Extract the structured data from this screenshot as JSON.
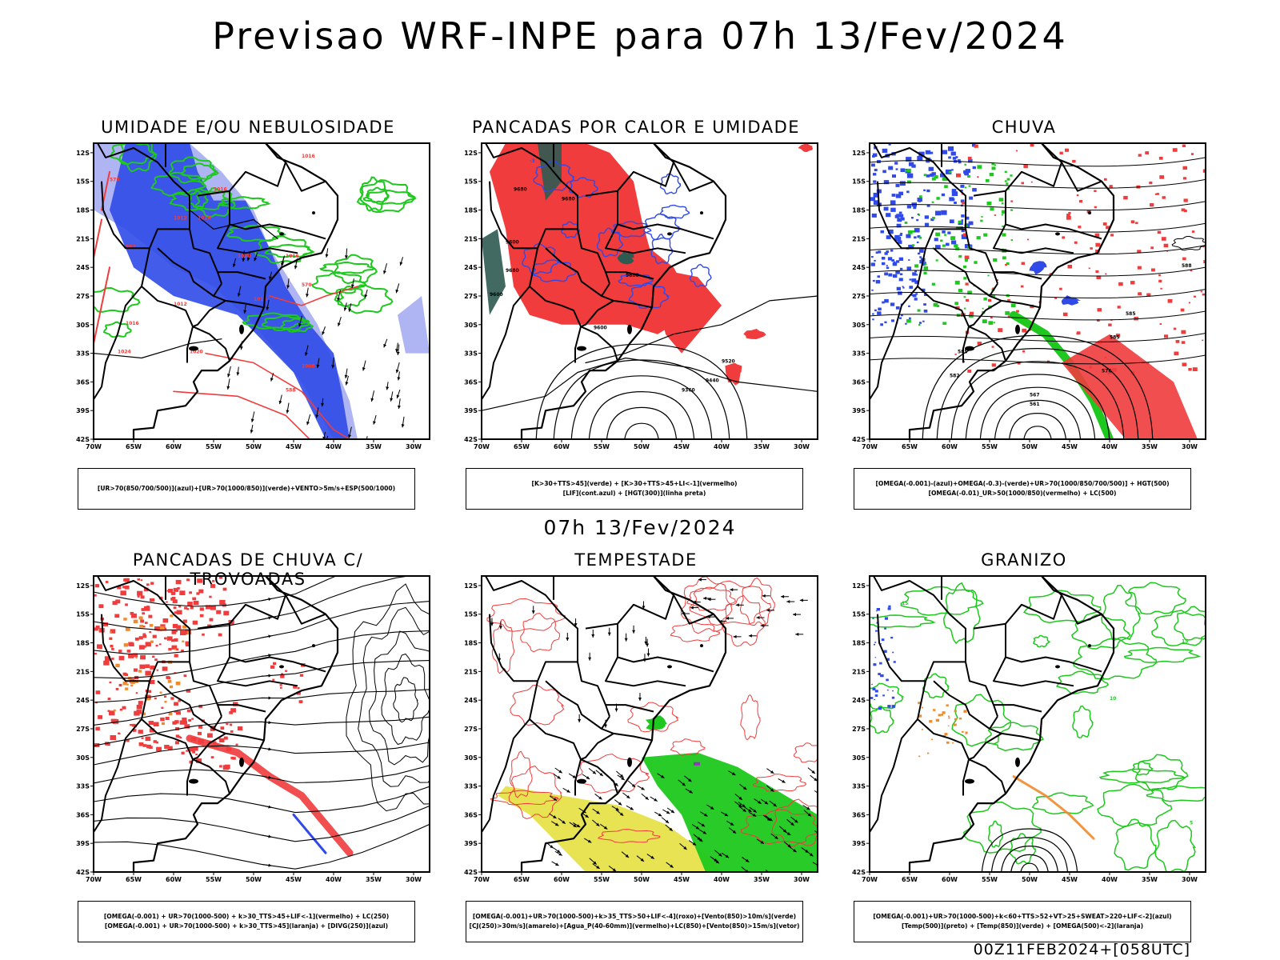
{
  "title": "Previsao WRF-INPE  para 07h 13/Fev/2024",
  "subtitle": "07h 13/Fev/2024",
  "footer": "00Z11FEB2024+[058UTC]",
  "axes": {
    "lat_labels": [
      "12S",
      "15S",
      "18S",
      "21S",
      "24S",
      "27S",
      "30S",
      "33S",
      "36S",
      "39S",
      "42S"
    ],
    "lon_labels": [
      "70W",
      "65W",
      "60W",
      "55W",
      "50W",
      "45W",
      "40W",
      "35W",
      "30W"
    ]
  },
  "colors": {
    "blue": "#2f4ae8",
    "lightblue": "#9aa3ef",
    "green": "#1ec81e",
    "red": "#f03c3c",
    "darkteal": "#2e5a52",
    "yellow": "#e4e040",
    "orange": "#f08a2a",
    "black": "#000000"
  },
  "panels": [
    {
      "title": "UMIDADE E/OU NEBULOSIDADE",
      "legend": [
        "[UR>70(850/700/500)](azul)+[UR>70(1000/850)](verde)+VENTO>5m/s+ESP(500/1000)"
      ],
      "contour_labels": [
        "1016",
        "1016",
        "1012",
        "1016",
        "1020",
        "1016",
        "1016",
        "1012",
        "1016",
        "1020",
        "1024",
        "1008",
        "570",
        "576",
        "582",
        "588"
      ]
    },
    {
      "title": "PANCADAS POR CALOR E UMIDADE",
      "legend": [
        "[K>30+TTS>45](verde) + [K>30+TTS>45+LI<-1](vermelho)",
        "[LIF](cont.azul) + [HGT(300)](linha preta)"
      ],
      "contour_labels": [
        "9680",
        "9680",
        "9600",
        "9680",
        "9680",
        "9600",
        "9600",
        "9520",
        "9440",
        "9360",
        "-3"
      ]
    },
    {
      "title": "CHUVA",
      "legend": [
        "[OMEGA(-0.001)-(azul)+OMEGA(-0.3)-(verde)+UR>70(1000/850/700/500)] + HGT(500)",
        "[OMEGA(-0.01)_UR>50(1000/850)(vermelho) + LC(500)"
      ],
      "contour_labels": [
        "585",
        "585",
        "585",
        "582",
        "576",
        "567",
        "561",
        "588"
      ]
    },
    {
      "title": "PANCADAS DE CHUVA C/ TROVOADAS",
      "legend": [
        "[OMEGA(-0.001) + UR>70(1000-500) + k>30_TTS>45+LIF<-1](vermelho) + LC(250)",
        "[OMEGA(-0.001) + UR>70(1000-500) + k>30_TTS>45](laranja) + [DIVG(250)](azul)"
      ],
      "contour_labels": []
    },
    {
      "title": "TEMPESTADE",
      "legend": [
        "[OMEGA(-0.001)+UR>70(1000-500)+k>35_TTS>50+LIF<-4](roxo)+[Vento(850)>10m/s](verde)",
        "[CJ(250)>30m/s](amarelo)+[Agua_P(40-60mm)](vermelho)+LC(850)+[Vento(850)>15m/s](vetor)"
      ],
      "contour_labels": []
    },
    {
      "title": "GRANIZO",
      "legend": [
        "[OMEGA(-0.001)+UR>70(1000-500)+k<60+TTS>52+VT>25+SWEAT>220+LIF<-2](azul)",
        "[Temp(500)](preto) + [Temp(850)](verde) + [OMEGA(500)<-2](laranja)"
      ],
      "contour_labels": [
        "15",
        "10",
        "5",
        "15"
      ]
    }
  ]
}
